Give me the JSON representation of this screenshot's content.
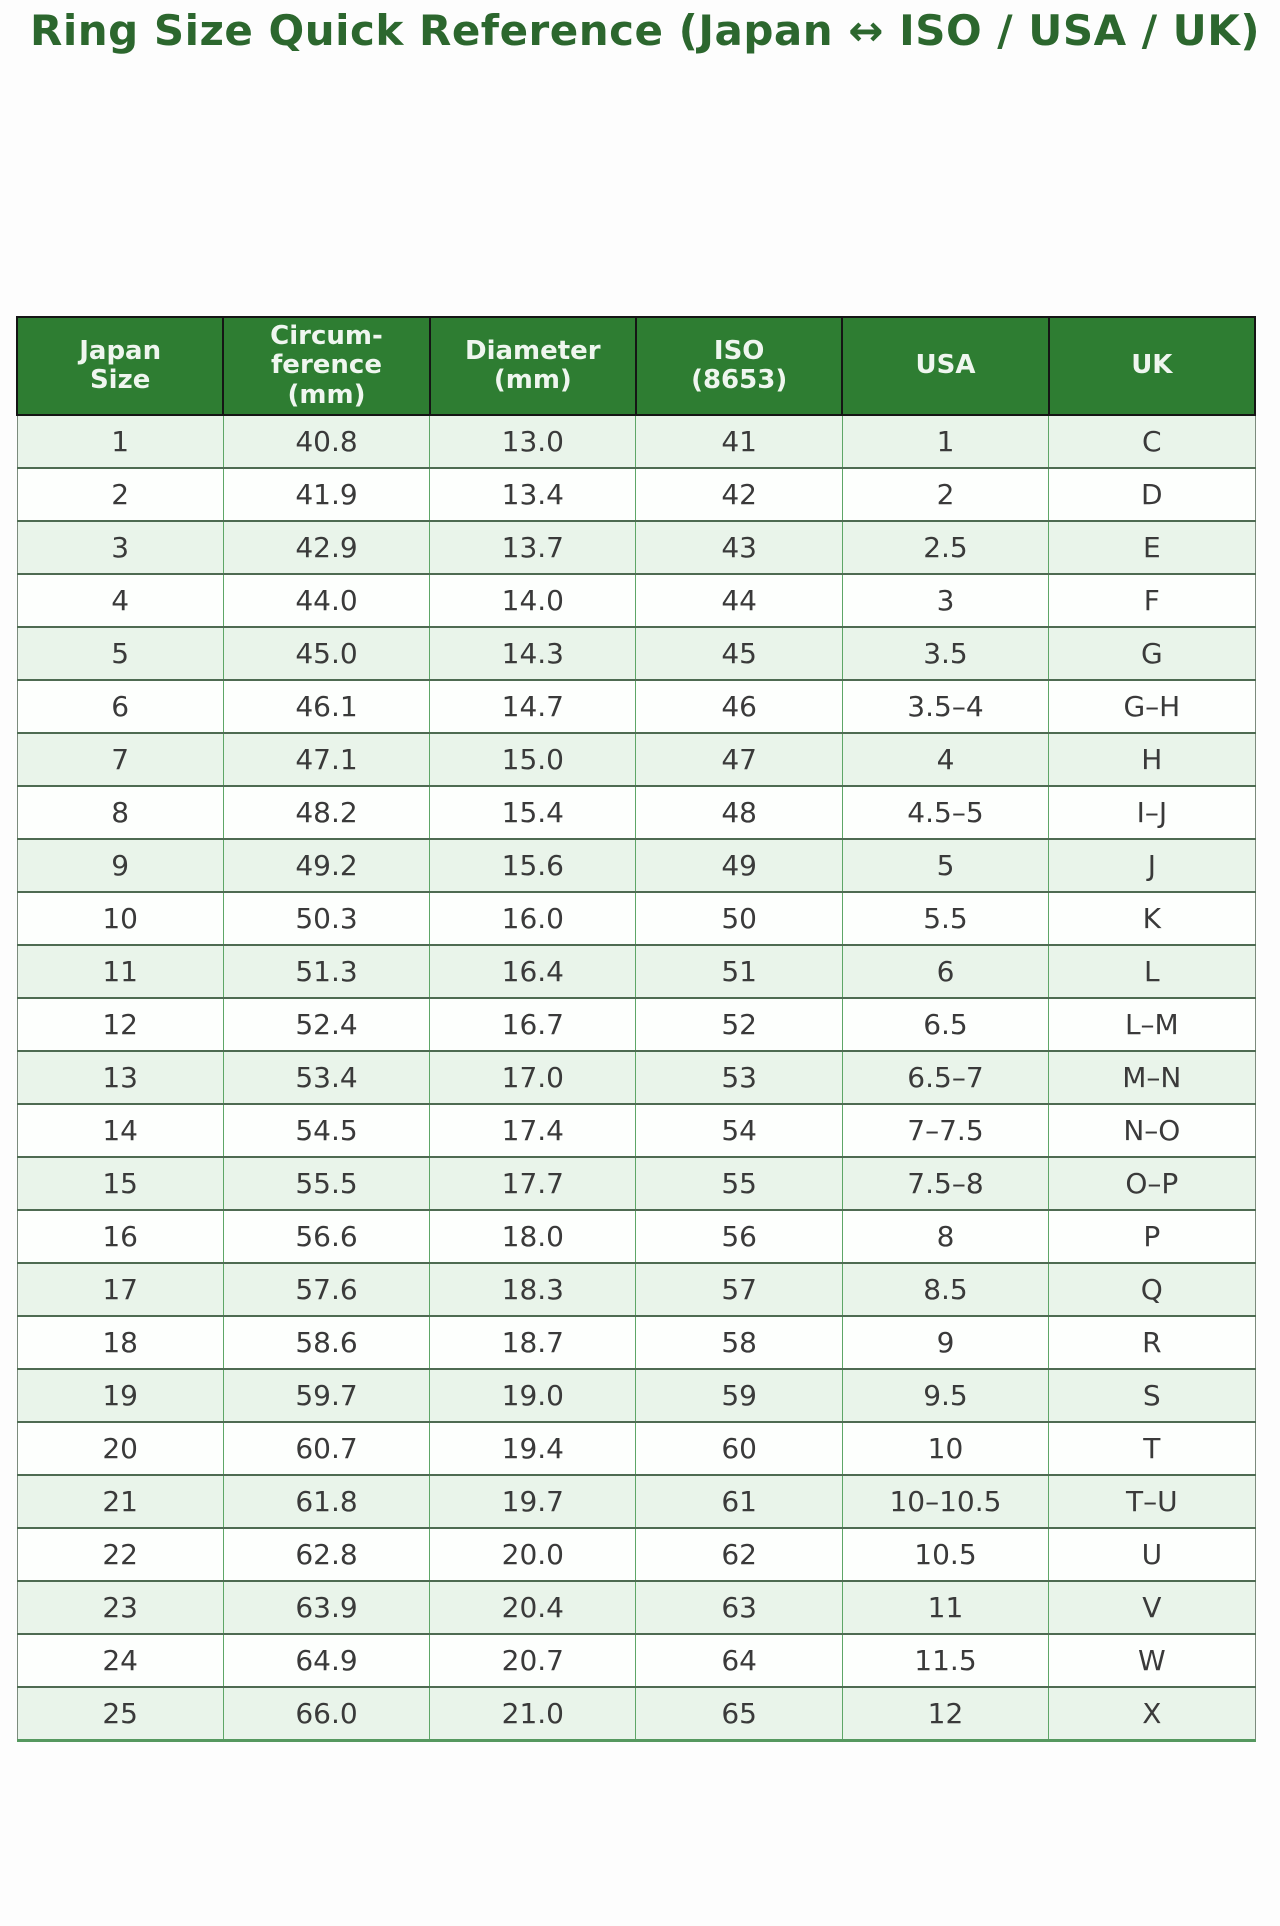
{
  "title": "Ring Size Quick Reference (Japan ↔ ISO / USA / UK)",
  "colors": {
    "page_bg": "#fdfdfd",
    "title_text": "#2c672e",
    "header_bg": "#2e7d32",
    "header_text": "#eff6ef",
    "header_border": "#151515",
    "cell_text": "#3a3a3a",
    "row_alt_bg": "#e9f4ea",
    "row_bg": "#fdfffd",
    "grid_vertical": "#5ea667",
    "grid_horizontal": "#4e6b52",
    "outer_side": "#7c8b7d",
    "outer_bottom": "#55985f"
  },
  "chart_data": {
    "type": "table",
    "title": "Ring Size Quick Reference (Japan ↔ ISO / USA / UK)",
    "columns": [
      "Japan\nSize",
      "Circum-\nference\n(mm)",
      "Diameter\n(mm)",
      "ISO\n(8653)",
      "USA",
      "UK"
    ],
    "rows": [
      [
        "1",
        "40.8",
        "13.0",
        "41",
        "1",
        "C"
      ],
      [
        "2",
        "41.9",
        "13.4",
        "42",
        "2",
        "D"
      ],
      [
        "3",
        "42.9",
        "13.7",
        "43",
        "2.5",
        "E"
      ],
      [
        "4",
        "44.0",
        "14.0",
        "44",
        "3",
        "F"
      ],
      [
        "5",
        "45.0",
        "14.3",
        "45",
        "3.5",
        "G"
      ],
      [
        "6",
        "46.1",
        "14.7",
        "46",
        "3.5–4",
        "G–H"
      ],
      [
        "7",
        "47.1",
        "15.0",
        "47",
        "4",
        "H"
      ],
      [
        "8",
        "48.2",
        "15.4",
        "48",
        "4.5–5",
        "I–J"
      ],
      [
        "9",
        "49.2",
        "15.6",
        "49",
        "5",
        "J"
      ],
      [
        "10",
        "50.3",
        "16.0",
        "50",
        "5.5",
        "K"
      ],
      [
        "11",
        "51.3",
        "16.4",
        "51",
        "6",
        "L"
      ],
      [
        "12",
        "52.4",
        "16.7",
        "52",
        "6.5",
        "L–M"
      ],
      [
        "13",
        "53.4",
        "17.0",
        "53",
        "6.5–7",
        "M–N"
      ],
      [
        "14",
        "54.5",
        "17.4",
        "54",
        "7–7.5",
        "N–O"
      ],
      [
        "15",
        "55.5",
        "17.7",
        "55",
        "7.5–8",
        "O–P"
      ],
      [
        "16",
        "56.6",
        "18.0",
        "56",
        "8",
        "P"
      ],
      [
        "17",
        "57.6",
        "18.3",
        "57",
        "8.5",
        "Q"
      ],
      [
        "18",
        "58.6",
        "18.7",
        "58",
        "9",
        "R"
      ],
      [
        "19",
        "59.7",
        "19.0",
        "59",
        "9.5",
        "S"
      ],
      [
        "20",
        "60.7",
        "19.4",
        "60",
        "10",
        "T"
      ],
      [
        "21",
        "61.8",
        "19.7",
        "61",
        "10–10.5",
        "T–U"
      ],
      [
        "22",
        "62.8",
        "20.0",
        "62",
        "10.5",
        "U"
      ],
      [
        "23",
        "63.9",
        "20.4",
        "63",
        "11",
        "V"
      ],
      [
        "24",
        "64.9",
        "20.7",
        "64",
        "11.5",
        "W"
      ],
      [
        "25",
        "66.0",
        "21.0",
        "65",
        "12",
        "X"
      ]
    ]
  }
}
